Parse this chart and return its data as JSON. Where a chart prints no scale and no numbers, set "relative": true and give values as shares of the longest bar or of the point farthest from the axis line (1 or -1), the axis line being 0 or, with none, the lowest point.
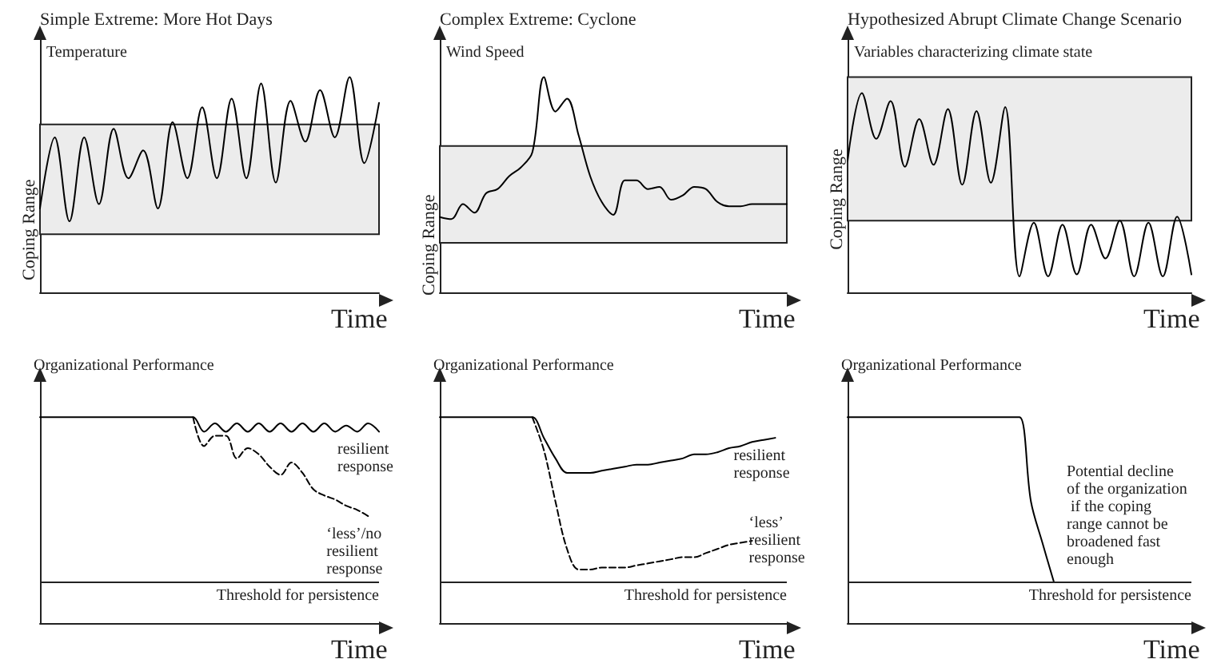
{
  "chart_data": [
    {
      "type": "line",
      "title": "Simple Extreme: More Hot Days",
      "ylabel": "Temperature",
      "xlabel": "Time",
      "relative": true,
      "grid": false,
      "marker": "none",
      "categories": [
        null,
        null,
        null,
        null,
        null,
        null,
        null,
        null,
        null,
        null,
        null,
        null,
        null,
        null,
        null,
        null,
        null,
        null,
        null,
        null,
        null,
        null,
        null,
        null
      ],
      "series": [
        {
          "color": "#000000",
          "line_style": "solid",
          "values": [
            0.39,
            0.72,
            0.33,
            0.72,
            0.41,
            0.76,
            0.53,
            0.66,
            0.39,
            0.79,
            0.53,
            0.86,
            0.53,
            0.9,
            0.53,
            0.97,
            0.51,
            0.89,
            0.7,
            0.94,
            0.72,
            1,
            0.6,
            0.88
          ]
        }
      ],
      "bands": [
        {
          "axis": "y",
          "from": 0.27,
          "to": 0.78,
          "label": "Coping Range",
          "color": "#ececec"
        }
      ]
    },
    {
      "type": "line",
      "title": "Complex Extreme: Cyclone",
      "ylabel": "Wind Speed",
      "xlabel": "Time",
      "relative": true,
      "grid": false,
      "marker": "none",
      "categories": [
        null,
        null,
        null,
        null,
        null,
        null,
        null,
        null,
        null,
        null,
        null,
        null,
        null,
        null,
        null,
        null,
        null,
        null,
        null,
        null,
        null,
        null,
        null,
        null,
        null,
        null,
        null,
        null,
        null,
        null,
        null
      ],
      "series": [
        {
          "color": "#000000",
          "line_style": "solid",
          "values": [
            0.35,
            0.34,
            0.41,
            0.37,
            0.46,
            0.48,
            0.54,
            0.58,
            0.65,
            1,
            0.84,
            0.9,
            0.73,
            0.54,
            0.42,
            0.36,
            0.52,
            0.52,
            0.48,
            0.49,
            0.43,
            0.45,
            0.49,
            0.48,
            0.42,
            0.4,
            0.4,
            0.41,
            0.41,
            0.41,
            0.41
          ]
        }
      ],
      "bands": [
        {
          "axis": "y",
          "from": 0.23,
          "to": 0.68,
          "label": "Coping Range",
          "color": "#ececec"
        }
      ]
    },
    {
      "type": "line",
      "title": "Hypothesized Abrupt Climate Change Scenario",
      "ylabel": "Variables characterizing climate state",
      "xlabel": "Time",
      "relative": true,
      "grid": false,
      "marker": "none",
      "categories": [
        null,
        null,
        null,
        null,
        null,
        null,
        null,
        null,
        null,
        null,
        null,
        null,
        null,
        null,
        null,
        null,
        null,
        null,
        null,
        null,
        null,
        null,
        null,
        null,
        null
      ],
      "series": [
        {
          "color": "#000000",
          "line_style": "solid",
          "values": [
            0.66,
            1,
            0.77,
            0.96,
            0.63,
            0.87,
            0.64,
            0.92,
            0.54,
            0.91,
            0.55,
            0.93,
            0.08,
            0.35,
            0.08,
            0.34,
            0.09,
            0.34,
            0.17,
            0.36,
            0.08,
            0.35,
            0.08,
            0.38,
            0.09
          ]
        }
      ],
      "bands": [
        {
          "axis": "y",
          "from": 0.36,
          "to": 1.08,
          "label": "Coping Range",
          "color": "#ececec"
        }
      ]
    },
    {
      "type": "line",
      "ylabel": "Organizational Performance",
      "xlabel": "Time",
      "relative": true,
      "grid": false,
      "marker": "none",
      "categories": [
        null,
        null,
        null,
        null,
        null,
        null,
        null,
        null,
        null,
        null,
        null,
        null,
        null,
        null,
        null,
        null,
        null,
        null,
        null,
        null,
        null,
        null,
        null,
        null,
        null,
        null,
        null,
        null,
        null,
        null,
        null,
        null
      ],
      "series": [
        {
          "name": "resilient response",
          "color": "#000000",
          "line_style": "solid",
          "values": [
            1,
            1,
            1,
            1,
            1,
            1,
            1,
            1,
            1,
            1,
            1,
            1,
            1,
            1,
            1,
            0.93,
            0.97,
            0.93,
            0.97,
            0.93,
            0.97,
            0.93,
            0.97,
            0.93,
            0.97,
            0.93,
            0.97,
            0.93,
            0.96,
            0.93,
            0.97,
            0.93
          ]
        },
        {
          "name": "‘less’/no resilient response",
          "color": "#000000",
          "line_style": "dashed",
          "values": [
            null,
            null,
            null,
            null,
            null,
            null,
            null,
            null,
            null,
            null,
            null,
            null,
            null,
            null,
            1,
            0.86,
            0.91,
            0.91,
            0.8,
            0.85,
            0.82,
            0.76,
            0.72,
            0.78,
            0.73,
            0.65,
            0.62,
            0.6,
            0.57,
            0.55,
            0.52,
            null
          ]
        }
      ],
      "ref_lines": [
        {
          "axis": "y",
          "value": 0.2,
          "label": "Threshold for persistence"
        }
      ]
    },
    {
      "type": "line",
      "ylabel": "Organizational Performance",
      "xlabel": "Time",
      "relative": true,
      "grid": false,
      "marker": "none",
      "categories": [
        null,
        null,
        null,
        null,
        null,
        null,
        null,
        null,
        null,
        null,
        null,
        null,
        null,
        null,
        null,
        null,
        null,
        null,
        null,
        null,
        null,
        null,
        null,
        null,
        null,
        null,
        null,
        null,
        null,
        null,
        null
      ],
      "series": [
        {
          "name": "resilient response",
          "color": "#000000",
          "line_style": "solid",
          "values": [
            1,
            1,
            1,
            1,
            1,
            1,
            1,
            1,
            1,
            0.9,
            0.8,
            0.73,
            0.73,
            0.73,
            0.74,
            0.75,
            0.76,
            0.77,
            0.77,
            0.78,
            0.79,
            0.8,
            0.82,
            0.82,
            0.83,
            0.85,
            0.86,
            0.88,
            0.89,
            0.9,
            null
          ]
        },
        {
          "name": "‘less’ resilient response",
          "color": "#000000",
          "line_style": "dashed",
          "values": [
            null,
            null,
            null,
            null,
            null,
            null,
            null,
            null,
            1,
            0.84,
            0.59,
            0.36,
            0.26,
            0.26,
            0.27,
            0.27,
            0.27,
            0.28,
            0.29,
            0.3,
            0.31,
            0.32,
            0.32,
            0.34,
            0.36,
            0.38,
            0.39,
            0.4,
            null,
            null,
            null
          ]
        }
      ],
      "ref_lines": [
        {
          "axis": "y",
          "value": 0.2,
          "label": "Threshold for persistence"
        }
      ]
    },
    {
      "type": "line",
      "ylabel": "Organizational Performance",
      "xlabel": "Time",
      "relative": true,
      "grid": false,
      "marker": "none",
      "categories": [
        null,
        null,
        null,
        null,
        null,
        null,
        null,
        null,
        null,
        null,
        null,
        null,
        null,
        null,
        null,
        null,
        null,
        null,
        null,
        null,
        null,
        null,
        null,
        null,
        null,
        null,
        null,
        null,
        null,
        null,
        null
      ],
      "series": [
        {
          "color": "#000000",
          "line_style": "solid",
          "values": [
            1,
            1,
            1,
            1,
            1,
            1,
            1,
            1,
            1,
            1,
            1,
            1,
            1,
            1,
            1,
            1,
            0.59,
            0.39,
            0.2,
            null,
            null,
            null,
            null,
            null,
            null,
            null,
            null,
            null,
            null,
            null,
            null
          ]
        }
      ],
      "ref_lines": [
        {
          "axis": "y",
          "value": 0.2,
          "label": "Threshold for persistence"
        }
      ],
      "annotations": [
        "Potential decline of the organization if the coping range cannot be broadened fast enough"
      ]
    }
  ]
}
